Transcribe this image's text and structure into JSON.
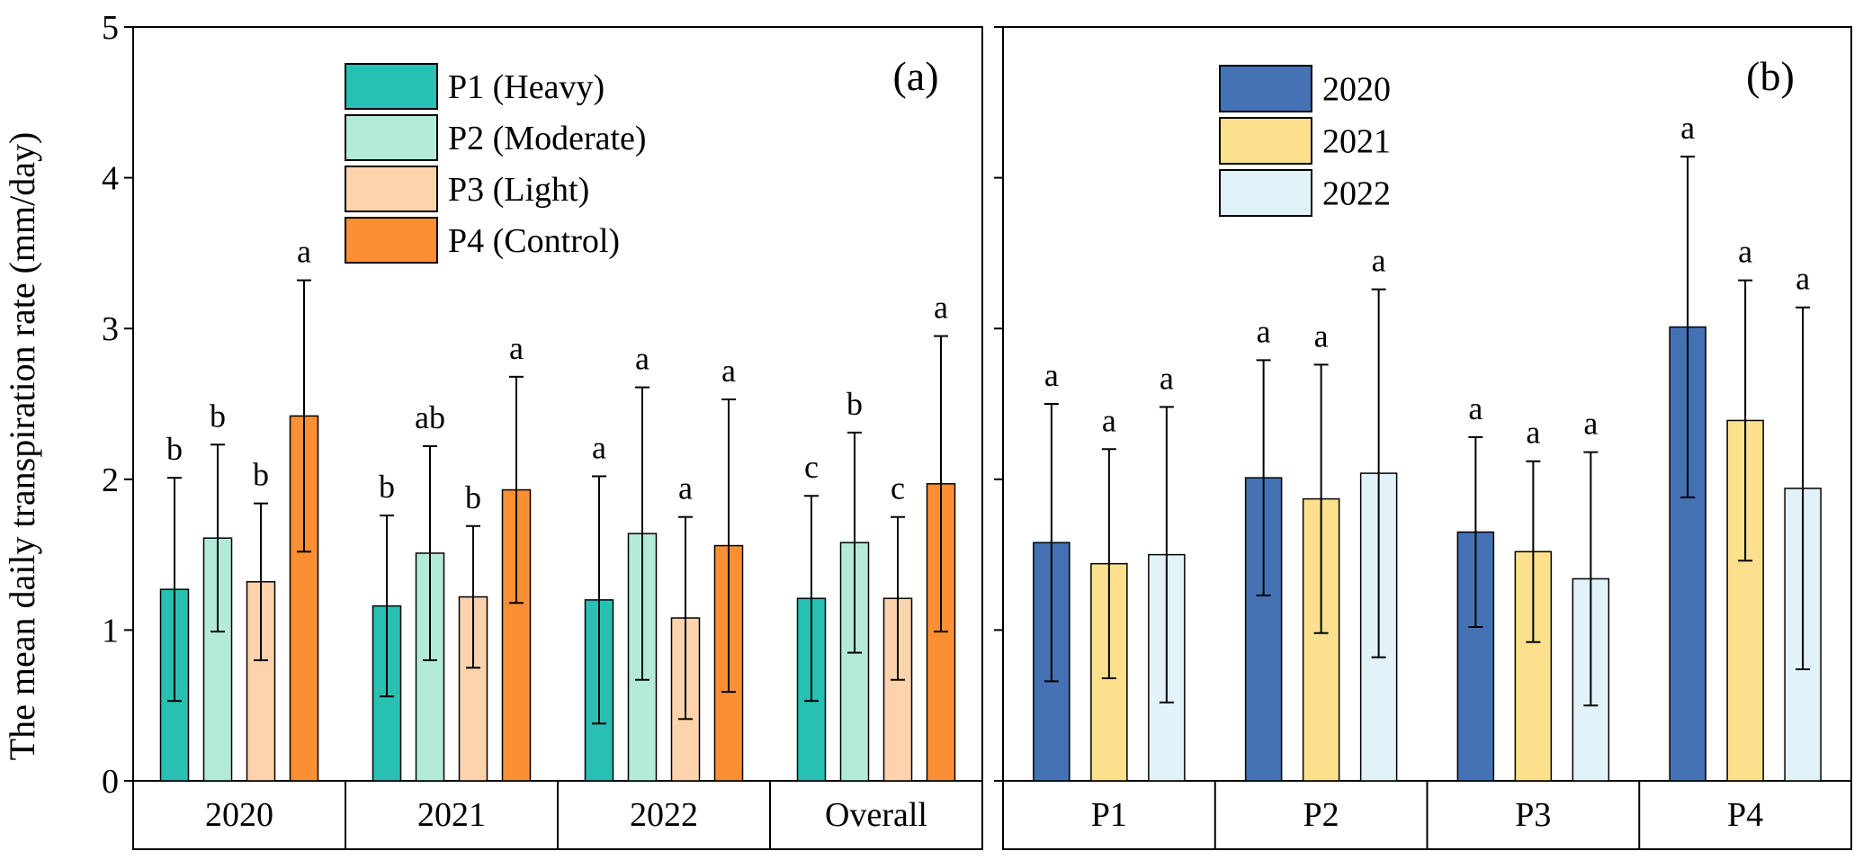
{
  "ylabel": "The mean daily transpiration rate (mm/day)",
  "yticks": [
    "0",
    "1",
    "2",
    "3",
    "4",
    "5"
  ],
  "chart_data": [
    {
      "type": "bar",
      "panel_label": "(a)",
      "ylim": [
        0,
        5
      ],
      "ylabel": "The mean daily transpiration rate (mm/day)",
      "categories": [
        "2020",
        "2021",
        "2022",
        "Overall"
      ],
      "legend_position": "top-center",
      "series": [
        {
          "name": "P1 (Heavy)",
          "color": "#27c0b2",
          "values": [
            1.27,
            1.16,
            1.2,
            1.21
          ],
          "errors": [
            0.74,
            0.6,
            0.82,
            0.68
          ],
          "letters": [
            "b",
            "b",
            "a",
            "c"
          ]
        },
        {
          "name": "P2 (Moderate)",
          "color": "#b4ead9",
          "values": [
            1.61,
            1.51,
            1.64,
            1.58
          ],
          "errors": [
            0.62,
            0.71,
            0.97,
            0.73
          ],
          "letters": [
            "b",
            "ab",
            "a",
            "b"
          ]
        },
        {
          "name": "P3 (Light)",
          "color": "#fcd3ad",
          "values": [
            1.32,
            1.22,
            1.08,
            1.21
          ],
          "errors": [
            0.52,
            0.47,
            0.67,
            0.54
          ],
          "letters": [
            "b",
            "b",
            "a",
            "c"
          ]
        },
        {
          "name": "P4 (Control)",
          "color": "#fb8f33",
          "values": [
            2.42,
            1.93,
            1.56,
            1.97
          ],
          "errors": [
            0.9,
            0.75,
            0.97,
            0.98
          ],
          "letters": [
            "a",
            "a",
            "a",
            "a"
          ]
        }
      ]
    },
    {
      "type": "bar",
      "panel_label": "(b)",
      "ylim": [
        0,
        5
      ],
      "categories": [
        "P1",
        "P2",
        "P3",
        "P4"
      ],
      "legend_position": "top-center",
      "series": [
        {
          "name": "2020",
          "color": "#4472b5",
          "values": [
            1.58,
            2.01,
            1.65,
            3.01
          ],
          "errors": [
            0.92,
            0.78,
            0.63,
            1.13
          ],
          "letters": [
            "a",
            "a",
            "a",
            "a"
          ]
        },
        {
          "name": "2021",
          "color": "#fde08e",
          "values": [
            1.44,
            1.87,
            1.52,
            2.39
          ],
          "errors": [
            0.76,
            0.89,
            0.6,
            0.93
          ],
          "letters": [
            "a",
            "a",
            "a",
            "a"
          ]
        },
        {
          "name": "2022",
          "color": "#e1f2f9",
          "values": [
            1.5,
            2.04,
            1.34,
            1.94
          ],
          "errors": [
            0.98,
            1.22,
            0.84,
            1.2
          ],
          "letters": [
            "a",
            "a",
            "a",
            "a"
          ]
        }
      ]
    }
  ]
}
